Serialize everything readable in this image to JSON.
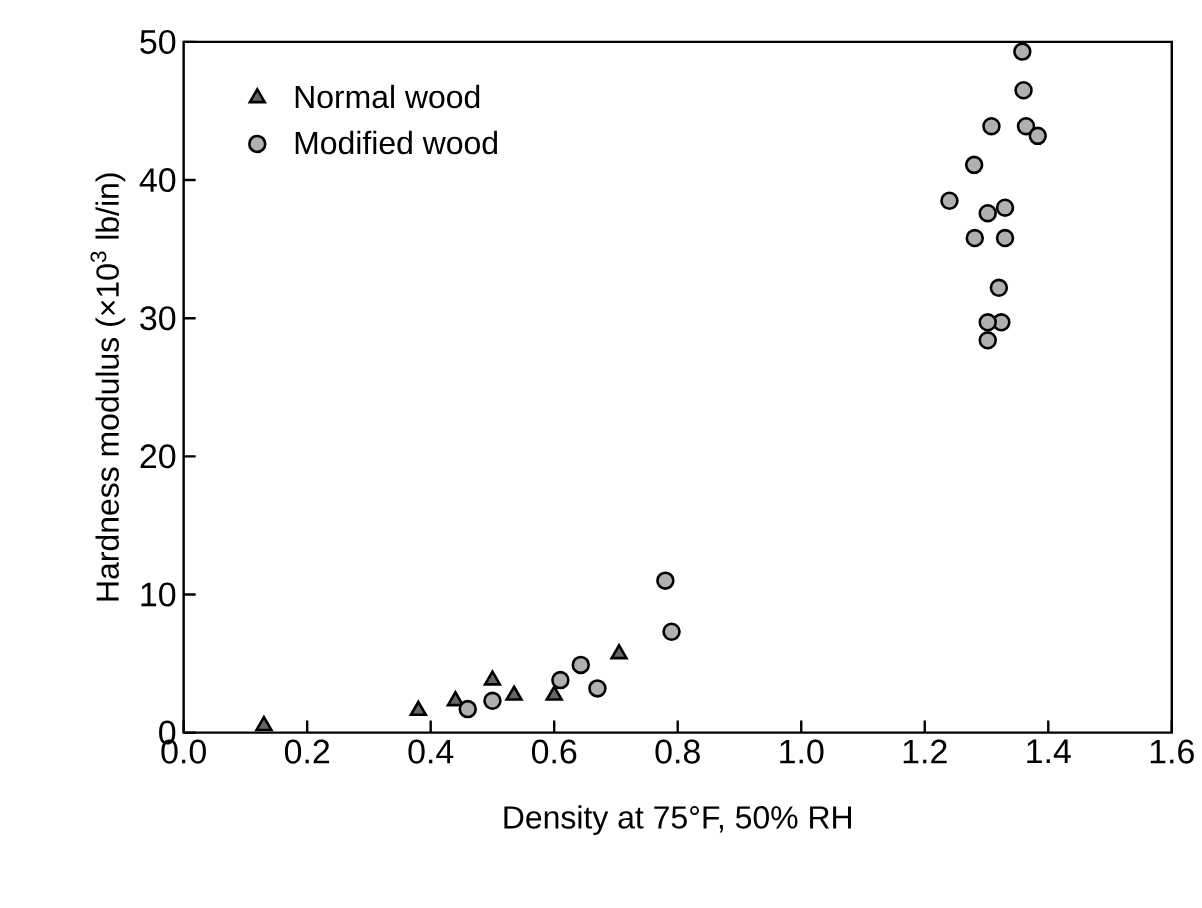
{
  "chart_data": {
    "type": "scatter",
    "xlabel": "Density at 75°F, 50% RH",
    "ylabel": "Hardness modulus (×10$^{3}$ lb/in)",
    "xlim": [
      0,
      1.6
    ],
    "ylim": [
      0,
      50
    ],
    "xticks": [
      {
        "value": 0,
        "label": "0.0"
      },
      0.2,
      0.4,
      0.6,
      0.8,
      {
        "value": 1,
        "label": "1.0"
      },
      1.2,
      1.4,
      1.6
    ],
    "yticks": [
      0,
      10,
      20,
      30,
      40,
      50
    ],
    "legend": "top left",
    "grid": false,
    "series": [
      {
        "name": "Normal wood",
        "color": "#666666",
        "marker": "triangle",
        "x": [
          0.13,
          0.38,
          0.44,
          0.5,
          0.535,
          0.6,
          0.705
        ],
        "values": [
          0.5,
          1.6,
          2.3,
          3.8,
          2.7,
          2.7,
          5.7
        ]
      },
      {
        "name": "Modified wood",
        "color": "#b0b0b0",
        "marker": "circle",
        "x": [
          0.46,
          0.5,
          0.61,
          0.643,
          0.67,
          0.78,
          0.79,
          1.358,
          1.36,
          1.308,
          1.364,
          1.383,
          1.28,
          1.24,
          1.302,
          1.33,
          1.281,
          1.33,
          1.32,
          1.324,
          1.302,
          1.302
        ],
        "values": [
          1.7,
          2.3,
          3.8,
          4.9,
          3.2,
          11.0,
          7.3,
          49.3,
          46.5,
          43.9,
          43.9,
          43.2,
          41.1,
          38.5,
          37.6,
          38.0,
          35.8,
          35.8,
          32.2,
          29.7,
          29.7,
          28.4
        ]
      }
    ]
  }
}
